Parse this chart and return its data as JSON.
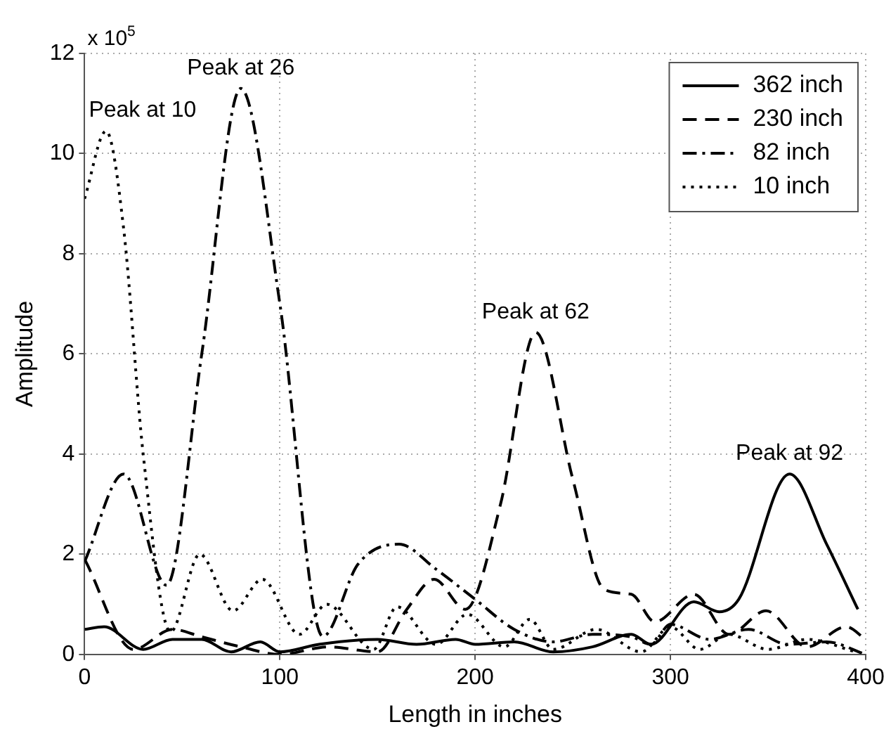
{
  "chart_data": {
    "type": "line",
    "xlabel": "Length in inches",
    "ylabel": "Amplitude",
    "xlim": [
      0,
      400
    ],
    "ylim": [
      0,
      12
    ],
    "xticks": [
      0,
      100,
      200,
      300,
      400
    ],
    "yticks": [
      0,
      2,
      4,
      6,
      8,
      10,
      12
    ],
    "grid": true,
    "legend": "top right",
    "marker": "none",
    "annotations": [
      "x 10$^{5}$",
      {
        "text": "Peak at 10",
        "x": 11,
        "y": 10.45
      },
      {
        "text": "Peak at 26",
        "x": 80,
        "y": 11.3
      },
      {
        "text": "Peak at 62",
        "x": 231,
        "y": 6.43
      },
      {
        "text": "Peak at 92",
        "x": 361,
        "y": 3.6
      }
    ],
    "series": [
      {
        "name": "362 inch",
        "color": "#000000",
        "line_style": "solid",
        "x": [
          0,
          10,
          30,
          45,
          60,
          75,
          90,
          100,
          120,
          150,
          170,
          190,
          200,
          220,
          240,
          260,
          280,
          290,
          312,
          325,
          335,
          361,
          380,
          396
        ],
        "values": [
          0.5,
          0.55,
          0.1,
          0.3,
          0.3,
          0.05,
          0.25,
          0.05,
          0.2,
          0.3,
          0.2,
          0.3,
          0.2,
          0.25,
          0.05,
          0.15,
          0.4,
          0.2,
          1.05,
          0.85,
          1.1,
          3.6,
          2.2,
          0.9
        ]
      },
      {
        "name": "230 inch",
        "color": "#000000",
        "line_style": "dashed",
        "x": [
          0,
          25,
          45,
          60,
          80,
          100,
          125,
          150,
          165,
          179,
          195,
          213,
          231,
          250,
          266,
          280,
          292,
          312,
          330,
          349,
          370,
          390,
          400
        ],
        "values": [
          1.9,
          0.1,
          0.5,
          0.35,
          0.15,
          0.0,
          0.15,
          0.05,
          0.9,
          1.5,
          0.9,
          3.0,
          6.43,
          3.5,
          1.3,
          1.2,
          0.65,
          1.2,
          0.4,
          0.87,
          0.15,
          0.55,
          0.3
        ]
      },
      {
        "name": "82 inch",
        "color": "#000000",
        "line_style": "dashdot",
        "x": [
          0,
          20,
          42,
          60,
          80,
          100,
          122,
          140,
          161,
          180,
          200,
          220,
          240,
          260,
          280,
          290,
          300,
          320,
          340,
          360,
          380,
          400
        ],
        "values": [
          1.85,
          3.6,
          1.38,
          6.0,
          11.3,
          7.0,
          0.36,
          1.8,
          2.2,
          1.7,
          1.1,
          0.5,
          0.25,
          0.4,
          0.35,
          0.2,
          0.6,
          0.3,
          0.5,
          0.2,
          0.25,
          0.0
        ]
      },
      {
        "name": "10 inch",
        "color": "#000000",
        "line_style": "dotted",
        "x": [
          0,
          11,
          20,
          30,
          44,
          59,
          76,
          91,
          110,
          124,
          148,
          160,
          180,
          196,
          215,
          228,
          240,
          262,
          285,
          300,
          315,
          330,
          350,
          370,
          395
        ],
        "values": [
          9.1,
          10.45,
          8.5,
          4.0,
          0.45,
          2.0,
          0.87,
          1.5,
          0.4,
          1.0,
          0.1,
          0.95,
          0.2,
          0.8,
          0.15,
          0.7,
          0.1,
          0.5,
          0.05,
          0.55,
          0.1,
          0.4,
          0.1,
          0.3,
          0.05
        ]
      }
    ]
  }
}
